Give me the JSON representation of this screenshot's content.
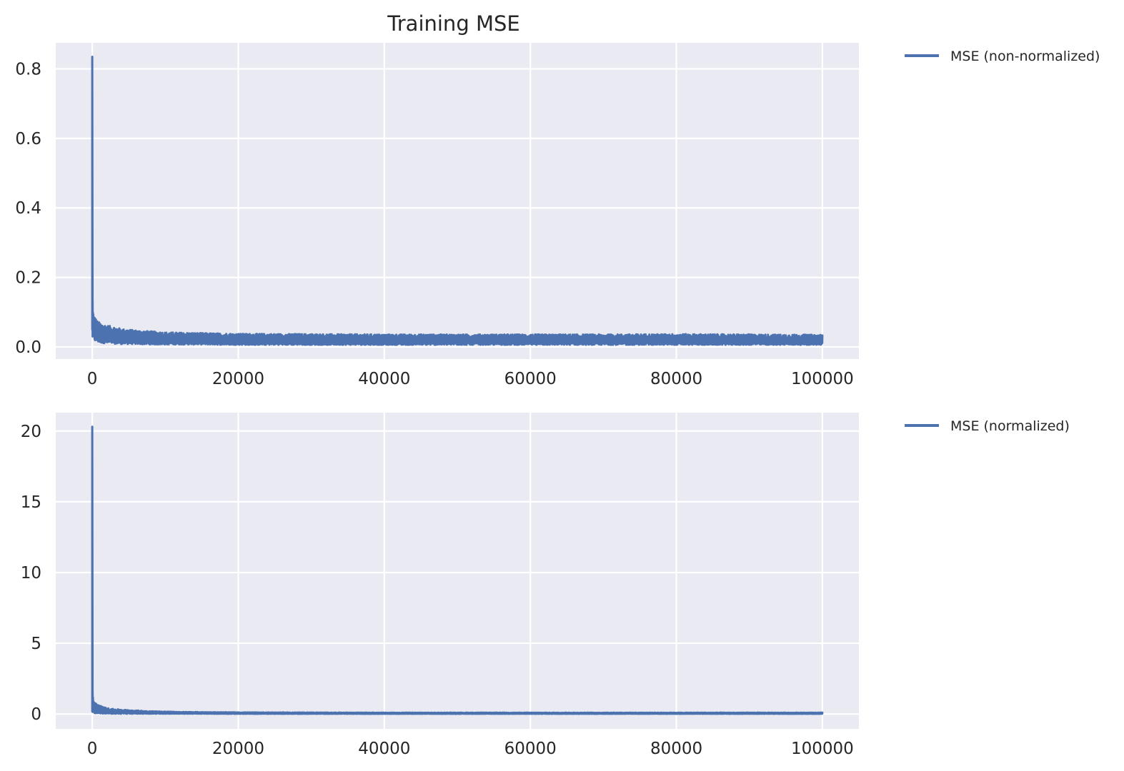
{
  "chart_data": [
    {
      "type": "line",
      "title": "Training MSE",
      "xlabel": "",
      "ylabel": "",
      "xlim": [
        -5000,
        105000
      ],
      "ylim": [
        -0.035,
        0.875
      ],
      "xticks": [
        0,
        20000,
        40000,
        60000,
        80000,
        100000
      ],
      "xtick_labels": [
        "0",
        "20000",
        "40000",
        "60000",
        "80000",
        "100000"
      ],
      "yticks": [
        0.0,
        0.2,
        0.4,
        0.6,
        0.8
      ],
      "ytick_labels": [
        "0.0",
        "0.2",
        "0.4",
        "0.6",
        "0.8"
      ],
      "grid": true,
      "legend_position": "outside-top-right",
      "series": [
        {
          "name": "MSE (non-normalized)",
          "color": "#4c72b0",
          "envelope": {
            "x": [
              0,
              50,
              100,
              200,
              400,
              700,
              1000,
              1500,
              2000,
              3000,
              4000,
              6000,
              8000,
              10000,
              15000,
              20000,
              30000,
              40000,
              50000,
              60000,
              70000,
              80000,
              90000,
              100000
            ],
            "y_high": [
              0.835,
              0.145,
              0.11,
              0.095,
              0.085,
              0.075,
              0.07,
              0.065,
              0.062,
              0.058,
              0.052,
              0.048,
              0.045,
              0.042,
              0.04,
              0.038,
              0.037,
              0.036,
              0.036,
              0.036,
              0.036,
              0.037,
              0.036,
              0.035
            ],
            "y_low": [
              0.05,
              0.03,
              0.022,
              0.018,
              0.016,
              0.014,
              0.012,
              0.011,
              0.01,
              0.009,
              0.008,
              0.008,
              0.007,
              0.007,
              0.007,
              0.006,
              0.006,
              0.006,
              0.006,
              0.006,
              0.006,
              0.006,
              0.006,
              0.006
            ]
          }
        }
      ]
    },
    {
      "type": "line",
      "title": "",
      "xlabel": "",
      "ylabel": "",
      "xlim": [
        -5000,
        105000
      ],
      "ylim": [
        -1.05,
        21.3
      ],
      "xticks": [
        0,
        20000,
        40000,
        60000,
        80000,
        100000
      ],
      "xtick_labels": [
        "0",
        "20000",
        "40000",
        "60000",
        "80000",
        "100000"
      ],
      "yticks": [
        0,
        5,
        10,
        15,
        20
      ],
      "ytick_labels": [
        "0",
        "5",
        "10",
        "15",
        "20"
      ],
      "grid": true,
      "legend_position": "outside-top-right",
      "series": [
        {
          "name": "MSE (normalized)",
          "color": "#4c72b0",
          "envelope": {
            "x": [
              0,
              50,
              100,
              200,
              400,
              700,
              1000,
              1500,
              2000,
              3000,
              5000,
              8000,
              12000,
              20000,
              40000,
              60000,
              80000,
              100000
            ],
            "y_high": [
              20.3,
              1.6,
              1.2,
              1.0,
              0.85,
              0.7,
              0.6,
              0.5,
              0.42,
              0.35,
              0.28,
              0.2,
              0.15,
              0.12,
              0.1,
              0.1,
              0.1,
              0.1
            ],
            "y_low": [
              0.2,
              0.15,
              0.1,
              0.08,
              0.06,
              0.05,
              0.04,
              0.03,
              0.03,
              0.02,
              0.02,
              0.02,
              0.02,
              0.01,
              0.01,
              0.01,
              0.01,
              0.01
            ]
          }
        }
      ]
    }
  ]
}
